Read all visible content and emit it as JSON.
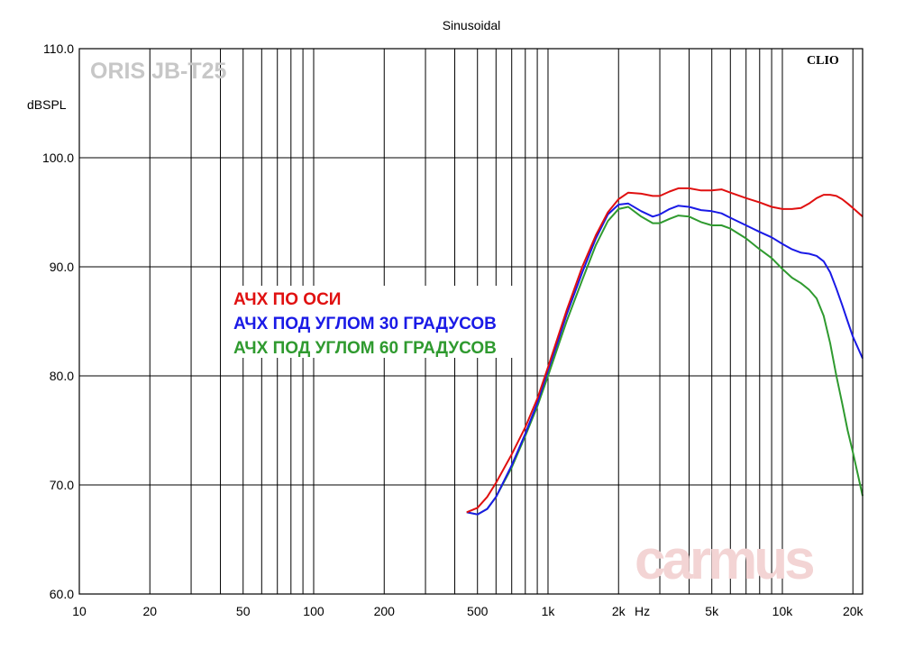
{
  "chart_data": {
    "type": "line",
    "title": "Sinusoidal",
    "ylabel": "dBSPL",
    "x_unit_label": "Hz",
    "xscale": "log",
    "xlim": [
      10,
      22000
    ],
    "ylim": [
      60,
      110
    ],
    "grid": true,
    "brand_label": "ORIS JB-T25",
    "software_label": "CLIO",
    "watermark": "carmus",
    "x_ticks": [
      {
        "value": 10,
        "label": "10"
      },
      {
        "value": 20,
        "label": "20"
      },
      {
        "value": 50,
        "label": "50"
      },
      {
        "value": 100,
        "label": "100"
      },
      {
        "value": 200,
        "label": "200"
      },
      {
        "value": 500,
        "label": "500"
      },
      {
        "value": 1000,
        "label": "1k"
      },
      {
        "value": 2000,
        "label": "2k"
      },
      {
        "value": 5000,
        "label": "5k"
      },
      {
        "value": 10000,
        "label": "10k"
      },
      {
        "value": 20000,
        "label": "20k"
      }
    ],
    "y_ticks": [
      {
        "value": 110,
        "label": "110.0"
      },
      {
        "value": 100,
        "label": "100.0"
      },
      {
        "value": 90,
        "label": "90.0"
      },
      {
        "value": 80,
        "label": "80.0"
      },
      {
        "value": 70,
        "label": "70.0"
      },
      {
        "value": 60,
        "label": "60.0"
      }
    ],
    "legend_position": "center-left",
    "series": [
      {
        "name": "АЧХ ПО ОСИ",
        "color": "#e01010",
        "x": [
          450,
          500,
          550,
          600,
          700,
          800,
          900,
          1000,
          1100,
          1200,
          1400,
          1600,
          1800,
          2000,
          2200,
          2500,
          2800,
          3000,
          3300,
          3600,
          4000,
          4500,
          5000,
          5500,
          6000,
          7000,
          8000,
          9000,
          10000,
          11000,
          12000,
          13000,
          14000,
          15000,
          16000,
          17000,
          18000,
          19000,
          20000,
          22000
        ],
        "y": [
          67.5,
          67.9,
          68.9,
          70.2,
          72.8,
          75.3,
          77.9,
          80.8,
          83.5,
          86.0,
          90.0,
          92.9,
          95.0,
          96.2,
          96.8,
          96.7,
          96.5,
          96.5,
          96.9,
          97.2,
          97.2,
          97.0,
          97.0,
          97.1,
          96.8,
          96.3,
          95.9,
          95.5,
          95.3,
          95.3,
          95.4,
          95.8,
          96.3,
          96.6,
          96.6,
          96.5,
          96.2,
          95.8,
          95.4,
          94.6
        ]
      },
      {
        "name": "АЧХ ПОД УГЛОМ 30 ГРАДУСОВ",
        "color": "#1a1ae6",
        "x": [
          450,
          500,
          550,
          600,
          700,
          800,
          900,
          1000,
          1100,
          1200,
          1400,
          1600,
          1800,
          2000,
          2200,
          2500,
          2800,
          3000,
          3300,
          3600,
          4000,
          4500,
          5000,
          5500,
          6000,
          7000,
          8000,
          9000,
          10000,
          11000,
          12000,
          13000,
          14000,
          15000,
          16000,
          17000,
          18000,
          19000,
          20000,
          22000
        ],
        "y": [
          67.5,
          67.3,
          67.8,
          68.9,
          71.8,
          74.7,
          77.5,
          80.5,
          83.1,
          85.6,
          89.5,
          92.6,
          94.8,
          95.7,
          95.8,
          95.1,
          94.6,
          94.8,
          95.3,
          95.6,
          95.5,
          95.2,
          95.1,
          94.9,
          94.5,
          93.8,
          93.2,
          92.7,
          92.1,
          91.6,
          91.3,
          91.2,
          91.0,
          90.5,
          89.5,
          88.0,
          86.5,
          85.0,
          83.6,
          81.6
        ]
      },
      {
        "name": "АЧХ ПОД УГЛОМ 60 ГРАДУСОВ",
        "color": "#2f9a2f",
        "x": [
          450,
          500,
          550,
          600,
          700,
          800,
          900,
          1000,
          1100,
          1200,
          1400,
          1600,
          1800,
          2000,
          2200,
          2500,
          2800,
          3000,
          3300,
          3600,
          4000,
          4500,
          5000,
          5500,
          6000,
          7000,
          8000,
          9000,
          10000,
          11000,
          12000,
          13000,
          14000,
          15000,
          16000,
          17000,
          18000,
          19000,
          20000,
          22000
        ],
        "y": [
          67.5,
          67.3,
          67.8,
          68.9,
          71.6,
          74.5,
          77.2,
          80.0,
          82.6,
          85.0,
          88.8,
          92.0,
          94.2,
          95.3,
          95.5,
          94.6,
          94.0,
          94.0,
          94.4,
          94.7,
          94.6,
          94.1,
          93.8,
          93.8,
          93.5,
          92.6,
          91.6,
          90.8,
          89.8,
          89.0,
          88.5,
          87.9,
          87.1,
          85.5,
          83.0,
          80.0,
          77.5,
          75.0,
          73.0,
          69.0
        ]
      }
    ]
  }
}
